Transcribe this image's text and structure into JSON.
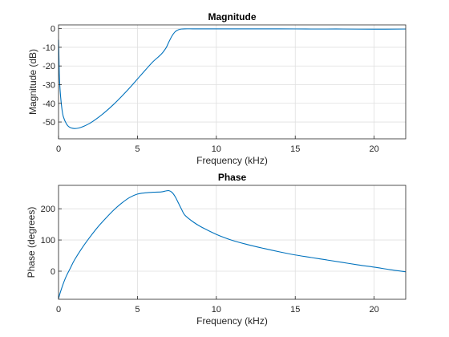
{
  "chart_data": [
    {
      "type": "line",
      "title": "Magnitude",
      "xlabel": "Frequency (kHz)",
      "ylabel": "Magnitude (dB)",
      "xlim": [
        0,
        22
      ],
      "ylim": [
        -59,
        2
      ],
      "xticks": [
        0,
        5,
        10,
        15,
        20
      ],
      "yticks": [
        0,
        -10,
        -20,
        -30,
        -40,
        -50
      ],
      "xtick_labels": [
        "0",
        "5",
        "10",
        "15",
        "20"
      ],
      "ytick_labels": [
        "0",
        "-10",
        "-20",
        "-30",
        "-40",
        "-50"
      ],
      "grid": true,
      "series": [
        {
          "color": "#0072bd",
          "x": [
            0,
            0.02,
            0.05,
            0.1,
            0.2,
            0.3,
            0.5,
            0.7,
            1.0,
            1.3,
            1.6,
            2.0,
            2.5,
            3.0,
            3.5,
            4.0,
            4.5,
            5.0,
            5.5,
            6.0,
            6.5,
            6.8,
            7.0,
            7.2,
            7.4,
            7.6,
            7.8,
            8.0,
            8.5,
            9.0,
            10,
            12,
            14,
            16,
            18,
            20,
            22
          ],
          "y": [
            -6,
            -12,
            -24,
            -33,
            -42,
            -47,
            -51,
            -52.8,
            -53.5,
            -53.2,
            -52.3,
            -50.6,
            -47.7,
            -44.3,
            -40.5,
            -36.3,
            -31.8,
            -27,
            -22.2,
            -17.6,
            -13.8,
            -10.5,
            -7,
            -3.8,
            -1.6,
            -0.6,
            -0.2,
            -0.1,
            -0.1,
            -0.1,
            -0.1,
            -0.1,
            -0.1,
            -0.2,
            -0.2,
            -0.3,
            -0.2
          ]
        }
      ]
    },
    {
      "type": "line",
      "title": "Phase",
      "xlabel": "Frequency (kHz)",
      "ylabel": "Phase (degrees)",
      "xlim": [
        0,
        22
      ],
      "ylim": [
        -90,
        275
      ],
      "xticks": [
        0,
        5,
        10,
        15,
        20
      ],
      "yticks": [
        0,
        100,
        200
      ],
      "xtick_labels": [
        "0",
        "5",
        "10",
        "15",
        "20"
      ],
      "ytick_labels": [
        "0",
        "100",
        "200"
      ],
      "grid": true,
      "series": [
        {
          "color": "#0072bd",
          "x": [
            0,
            0.1,
            0.3,
            0.5,
            0.75,
            1.0,
            1.5,
            2.0,
            2.5,
            3.0,
            3.5,
            4.0,
            4.5,
            5.0,
            5.5,
            6.0,
            6.5,
            6.8,
            7.0,
            7.2,
            7.4,
            7.6,
            7.8,
            8.0,
            8.5,
            9.0,
            10,
            11,
            12,
            13,
            14,
            15,
            16,
            17,
            18,
            19,
            20,
            21,
            22
          ],
          "y": [
            -88,
            -70,
            -40,
            -15,
            10,
            35,
            75,
            110,
            142,
            170,
            196,
            218,
            236,
            247,
            251,
            253,
            254,
            257,
            258,
            252,
            238,
            218,
            198,
            180,
            159,
            143,
            118,
            99,
            85,
            73,
            62,
            52,
            44,
            36,
            28,
            20,
            13,
            5,
            -2
          ]
        }
      ]
    }
  ]
}
